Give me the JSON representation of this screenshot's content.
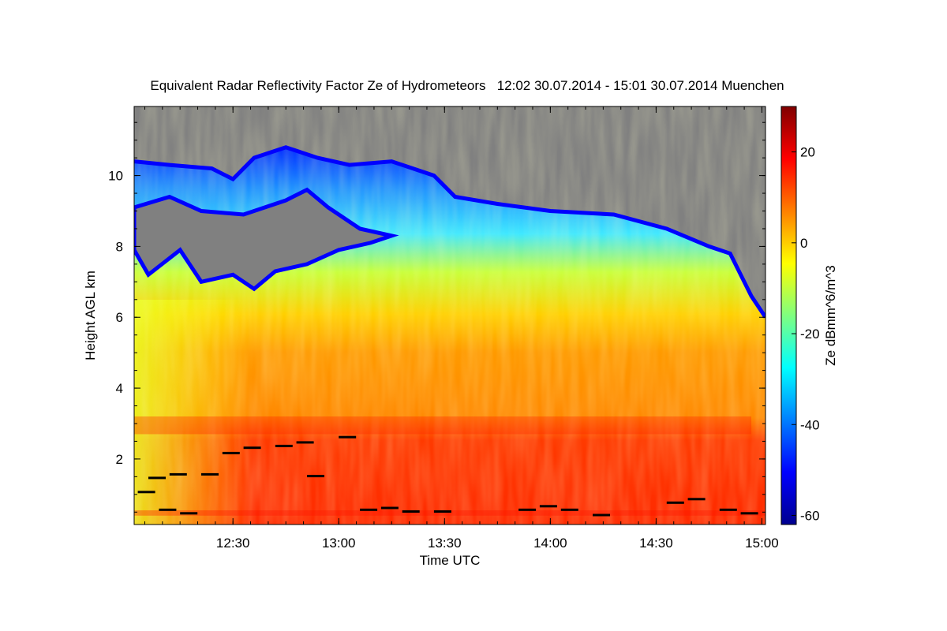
{
  "chart_data": {
    "type": "heatmap",
    "title": "Equivalent Radar Reflectivity Factor Ze of Hydrometeors   12:02 30.07.2014 - 15:01 30.07.2014 Muenchen",
    "xlabel": "Time UTC",
    "ylabel": "Height AGL km",
    "colorbar_label": "Ze dBmm^6/m^3",
    "x_ticks": [
      "12:30",
      "13:00",
      "13:30",
      "14:00",
      "14:30",
      "15:00"
    ],
    "x_tick_hours": [
      12.5,
      13.0,
      13.5,
      14.0,
      14.5,
      15.0
    ],
    "xlim_hours": [
      12.033,
      15.017
    ],
    "y_ticks": [
      "2",
      "4",
      "6",
      "8",
      "10"
    ],
    "y_tick_values": [
      2,
      4,
      6,
      8,
      10
    ],
    "ylim": [
      0.15,
      11.95
    ],
    "colorbar_ticks": [
      "20",
      "0",
      "-20",
      "-40",
      "-60"
    ],
    "colorbar_tick_values": [
      20,
      0,
      -20,
      -40,
      -60
    ],
    "colorbar_range": [
      -62,
      30
    ],
    "no_data_color": "#808080",
    "colormap": "jet",
    "echo_top_km": [
      [
        12.033,
        10.4
      ],
      [
        12.2,
        10.3
      ],
      [
        12.4,
        10.2
      ],
      [
        12.5,
        9.9
      ],
      [
        12.6,
        10.5
      ],
      [
        12.75,
        10.8
      ],
      [
        12.9,
        10.5
      ],
      [
        13.05,
        10.3
      ],
      [
        13.25,
        10.4
      ],
      [
        13.45,
        10.0
      ],
      [
        13.55,
        9.4
      ],
      [
        13.75,
        9.2
      ],
      [
        14.0,
        9.0
      ],
      [
        14.3,
        8.9
      ],
      [
        14.55,
        8.5
      ],
      [
        14.75,
        8.0
      ],
      [
        14.85,
        7.8
      ],
      [
        14.95,
        6.6
      ],
      [
        15.017,
        6.0
      ]
    ],
    "gap_region_upper_layer_bottom_km": [
      [
        12.033,
        9.1
      ],
      [
        12.2,
        9.4
      ],
      [
        12.35,
        9.0
      ],
      [
        12.55,
        8.9
      ],
      [
        12.75,
        9.3
      ],
      [
        12.85,
        9.6
      ],
      [
        12.95,
        9.1
      ],
      [
        13.1,
        8.5
      ],
      [
        13.25,
        8.3
      ]
    ],
    "gap_region_lower_layer_top_km": [
      [
        12.033,
        7.9
      ],
      [
        12.1,
        7.2
      ],
      [
        12.25,
        7.9
      ],
      [
        12.35,
        7.0
      ],
      [
        12.5,
        7.2
      ],
      [
        12.6,
        6.8
      ],
      [
        12.7,
        7.3
      ],
      [
        12.85,
        7.5
      ],
      [
        13.0,
        7.9
      ],
      [
        13.15,
        8.1
      ],
      [
        13.25,
        8.3
      ]
    ],
    "bright_band_km": [
      2.7,
      3.2
    ],
    "near_surface_layer_km": [
      0.4,
      0.55
    ],
    "cloud_base_points_hours_km": [
      [
        12.05,
        1.1
      ],
      [
        12.1,
        1.5
      ],
      [
        12.2,
        1.6
      ],
      [
        12.15,
        0.6
      ],
      [
        12.25,
        0.5
      ],
      [
        12.35,
        1.6
      ],
      [
        12.45,
        2.2
      ],
      [
        12.55,
        2.35
      ],
      [
        12.7,
        2.4
      ],
      [
        12.8,
        2.5
      ],
      [
        12.85,
        1.55
      ],
      [
        13.0,
        2.65
      ],
      [
        13.1,
        0.6
      ],
      [
        13.2,
        0.65
      ],
      [
        13.3,
        0.55
      ],
      [
        13.45,
        0.55
      ],
      [
        13.85,
        0.6
      ],
      [
        13.95,
        0.7
      ],
      [
        14.05,
        0.6
      ],
      [
        14.2,
        0.45
      ],
      [
        14.55,
        0.8
      ],
      [
        14.65,
        0.9
      ],
      [
        14.8,
        0.6
      ],
      [
        14.9,
        0.5
      ]
    ]
  }
}
